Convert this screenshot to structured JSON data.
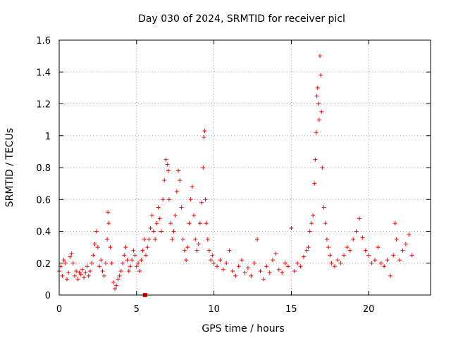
{
  "chart_data": {
    "type": "scatter",
    "title": "Day 030 of 2024, SRMTID for receiver picl",
    "xlabel": "GPS time / hours",
    "ylabel": "SRMTID / TECUs",
    "xlim": [
      0,
      24
    ],
    "ylim": [
      0,
      1.6
    ],
    "grid": true,
    "marker": "+",
    "color": "#ff0000",
    "x_ticks": [
      0,
      5,
      10,
      15,
      20
    ],
    "x_tick_labels": [
      "0",
      "5",
      "10",
      "15",
      "20"
    ],
    "y_ticks": [
      0,
      0.2,
      0.4,
      0.6,
      0.8,
      1.0,
      1.2,
      1.4,
      1.6
    ],
    "y_tick_labels": [
      "0",
      "0.2",
      "0.4",
      "0.6",
      "0.8",
      "1",
      "1.2",
      "1.4",
      "1.6"
    ],
    "series": [
      {
        "name": "SRMTID",
        "x": [
          0.0,
          0.1,
          0.2,
          0.3,
          0.4,
          0.5,
          0.6,
          0.7,
          0.8,
          0.9,
          1.0,
          1.1,
          1.2,
          1.3,
          1.4,
          1.5,
          1.6,
          1.7,
          1.8,
          1.9,
          2.0,
          2.1,
          2.2,
          2.3,
          2.4,
          2.5,
          2.6,
          2.7,
          2.8,
          2.9,
          3.0,
          3.1,
          3.15,
          3.2,
          3.3,
          3.4,
          3.5,
          3.6,
          3.7,
          3.8,
          3.9,
          4.0,
          4.1,
          4.2,
          4.3,
          4.4,
          4.5,
          4.6,
          4.7,
          4.8,
          4.9,
          5.0,
          5.1,
          5.2,
          5.3,
          5.4,
          5.5,
          5.6,
          5.7,
          5.8,
          5.9,
          6.0,
          6.1,
          6.2,
          6.3,
          6.4,
          6.5,
          6.6,
          6.7,
          6.8,
          6.9,
          7.0,
          7.05,
          7.1,
          7.2,
          7.3,
          7.4,
          7.5,
          7.6,
          7.7,
          7.8,
          7.9,
          8.0,
          8.1,
          8.2,
          8.3,
          8.4,
          8.5,
          8.6,
          8.7,
          8.8,
          8.9,
          9.0,
          9.1,
          9.2,
          9.3,
          9.35,
          9.4,
          9.45,
          9.5,
          9.6,
          9.7,
          9.8,
          9.9,
          10.0,
          10.2,
          10.4,
          10.6,
          10.8,
          11.0,
          11.2,
          11.4,
          11.6,
          11.8,
          12.0,
          12.2,
          12.4,
          12.6,
          12.8,
          13.0,
          13.2,
          13.4,
          13.6,
          13.8,
          14.0,
          14.2,
          14.4,
          14.6,
          14.8,
          15.0,
          15.2,
          15.4,
          15.6,
          15.8,
          16.0,
          16.1,
          16.2,
          16.3,
          16.4,
          16.5,
          16.55,
          16.6,
          16.65,
          16.7,
          16.75,
          16.8,
          16.85,
          16.9,
          16.95,
          17.0,
          17.1,
          17.2,
          17.3,
          17.4,
          17.5,
          17.6,
          17.8,
          18.0,
          18.2,
          18.4,
          18.6,
          18.8,
          19.0,
          19.2,
          19.4,
          19.6,
          19.8,
          20.0,
          20.2,
          20.4,
          20.6,
          20.8,
          21.0,
          21.2,
          21.4,
          21.6,
          21.7,
          21.8,
          22.0,
          22.2,
          22.4,
          22.6,
          22.8
        ],
        "y": [
          0.15,
          0.18,
          0.12,
          0.22,
          0.2,
          0.1,
          0.14,
          0.24,
          0.26,
          0.2,
          0.12,
          0.15,
          0.1,
          0.14,
          0.13,
          0.16,
          0.11,
          0.14,
          0.18,
          0.12,
          0.15,
          0.2,
          0.25,
          0.32,
          0.4,
          0.3,
          0.18,
          0.22,
          0.15,
          0.12,
          0.2,
          0.35,
          0.52,
          0.45,
          0.3,
          0.2,
          0.08,
          0.04,
          0.06,
          0.1,
          0.12,
          0.15,
          0.2,
          0.25,
          0.3,
          0.22,
          0.15,
          0.18,
          0.22,
          0.28,
          0.25,
          0.18,
          0.2,
          0.15,
          0.22,
          0.28,
          0.35,
          0.25,
          0.3,
          0.35,
          0.42,
          0.5,
          0.4,
          0.35,
          0.45,
          0.55,
          0.48,
          0.4,
          0.6,
          0.72,
          0.85,
          0.82,
          0.78,
          0.6,
          0.45,
          0.35,
          0.4,
          0.5,
          0.65,
          0.78,
          0.72,
          0.55,
          0.35,
          0.28,
          0.22,
          0.3,
          0.45,
          0.6,
          0.68,
          0.5,
          0.35,
          0.28,
          0.32,
          0.45,
          0.58,
          0.8,
          0.99,
          1.03,
          0.6,
          0.45,
          0.35,
          0.28,
          0.22,
          0.25,
          0.2,
          0.18,
          0.22,
          0.16,
          0.2,
          0.28,
          0.15,
          0.12,
          0.18,
          0.22,
          0.14,
          0.17,
          0.12,
          0.2,
          0.35,
          0.15,
          0.1,
          0.18,
          0.14,
          0.22,
          0.26,
          0.16,
          0.14,
          0.2,
          0.18,
          0.42,
          0.15,
          0.2,
          0.18,
          0.24,
          0.28,
          0.3,
          0.4,
          0.45,
          0.5,
          0.7,
          0.85,
          1.02,
          1.25,
          1.3,
          1.2,
          1.1,
          1.5,
          1.38,
          1.15,
          0.8,
          0.55,
          0.45,
          0.35,
          0.3,
          0.25,
          0.2,
          0.18,
          0.22,
          0.2,
          0.25,
          0.3,
          0.28,
          0.35,
          0.4,
          0.48,
          0.36,
          0.28,
          0.25,
          0.2,
          0.22,
          0.3,
          0.2,
          0.18,
          0.22,
          0.12,
          0.25,
          0.45,
          0.35,
          0.22,
          0.28,
          0.32,
          0.38,
          0.25
        ]
      }
    ],
    "outliers": [
      {
        "x": 5.55,
        "y": 0.0
      }
    ]
  }
}
